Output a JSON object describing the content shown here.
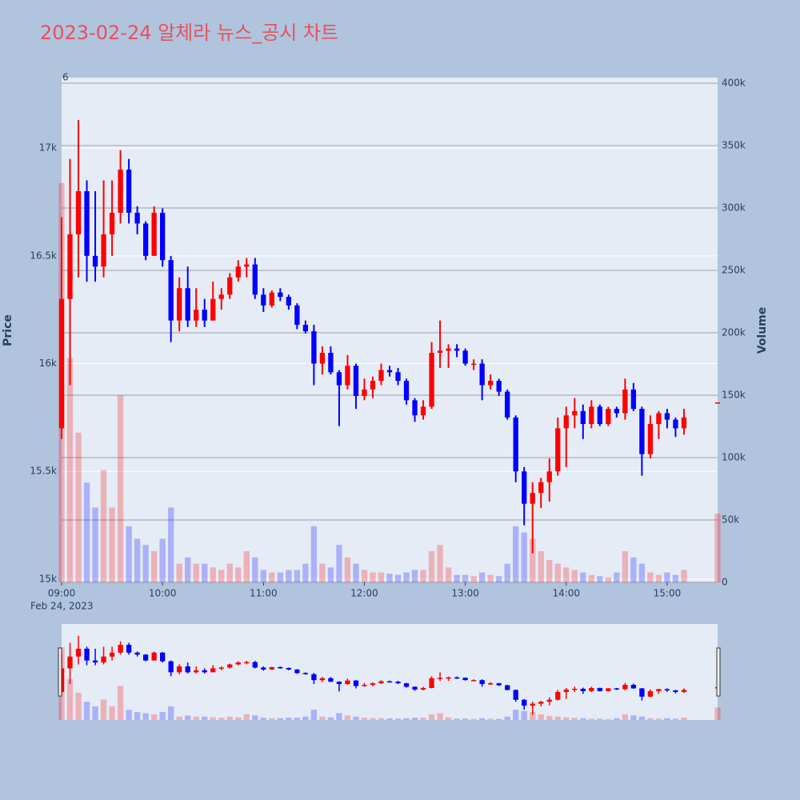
{
  "chart_data": {
    "type": "candlestick",
    "title": "2023-02-24 알체라 뉴스_공시 차트",
    "annotation": "6",
    "y_title": "Price",
    "y2_title": "Volume",
    "x_sublabel": "Feb 24, 2023",
    "up_color": "#ff0000",
    "down_color": "#0000ff",
    "x": [
      "2023-02-24 09:00",
      "2023-02-24 09:05",
      "2023-02-24 09:10",
      "2023-02-24 09:15",
      "2023-02-24 09:20",
      "2023-02-24 09:25",
      "2023-02-24 09:30",
      "2023-02-24 09:35",
      "2023-02-24 09:40",
      "2023-02-24 09:45",
      "2023-02-24 09:50",
      "2023-02-24 09:55",
      "2023-02-24 10:00",
      "2023-02-24 10:05",
      "2023-02-24 10:10",
      "2023-02-24 10:15",
      "2023-02-24 10:20",
      "2023-02-24 10:25",
      "2023-02-24 10:30",
      "2023-02-24 10:35",
      "2023-02-24 10:40",
      "2023-02-24 10:45",
      "2023-02-24 10:50",
      "2023-02-24 10:55",
      "2023-02-24 11:00",
      "2023-02-24 11:05",
      "2023-02-24 11:10",
      "2023-02-24 11:15",
      "2023-02-24 11:20",
      "2023-02-24 11:25",
      "2023-02-24 11:30",
      "2023-02-24 11:35",
      "2023-02-24 11:40",
      "2023-02-24 11:45",
      "2023-02-24 11:50",
      "2023-02-24 11:55",
      "2023-02-24 12:00",
      "2023-02-24 12:05",
      "2023-02-24 12:10",
      "2023-02-24 12:15",
      "2023-02-24 12:20",
      "2023-02-24 12:25",
      "2023-02-24 12:30",
      "2023-02-24 12:35",
      "2023-02-24 12:40",
      "2023-02-24 12:45",
      "2023-02-24 12:50",
      "2023-02-24 12:55",
      "2023-02-24 13:00",
      "2023-02-24 13:05",
      "2023-02-24 13:10",
      "2023-02-24 13:15",
      "2023-02-24 13:20",
      "2023-02-24 13:25",
      "2023-02-24 13:30",
      "2023-02-24 13:35",
      "2023-02-24 13:40",
      "2023-02-24 13:45",
      "2023-02-24 13:50",
      "2023-02-24 13:55",
      "2023-02-24 14:00",
      "2023-02-24 14:05",
      "2023-02-24 14:10",
      "2023-02-24 14:15",
      "2023-02-24 14:20",
      "2023-02-24 14:25",
      "2023-02-24 14:30",
      "2023-02-24 14:35",
      "2023-02-24 14:40",
      "2023-02-24 14:45",
      "2023-02-24 14:50",
      "2023-02-24 14:55",
      "2023-02-24 15:00",
      "2023-02-24 15:05",
      "2023-02-24 15:10",
      "2023-02-24 15:30"
    ],
    "open": [
      15700,
      16300,
      16600,
      16800,
      16500,
      16450,
      16600,
      16700,
      16900,
      16700,
      16650,
      16500,
      16700,
      16480,
      16200,
      16350,
      16200,
      16250,
      16200,
      16300,
      16320,
      16400,
      16450,
      16460,
      16320,
      16270,
      16330,
      16310,
      16270,
      16180,
      16150,
      16000,
      16050,
      15960,
      15900,
      15990,
      15850,
      15880,
      15920,
      15970,
      15960,
      15920,
      15830,
      15760,
      15800,
      16050,
      16060,
      16070,
      16060,
      16000,
      16000,
      15900,
      15920,
      15870,
      15750,
      15500,
      15350,
      15400,
      15450,
      15500,
      15700,
      15760,
      15780,
      15720,
      15800,
      15720,
      15790,
      15770,
      15880,
      15790,
      15580,
      15720,
      15770,
      15740,
      15700,
      15820
    ],
    "high": [
      16680,
      16950,
      17130,
      16850,
      16800,
      16850,
      16850,
      16990,
      16950,
      16730,
      16660,
      16730,
      16720,
      16500,
      16400,
      16450,
      16350,
      16300,
      16380,
      16350,
      16420,
      16480,
      16490,
      16490,
      16350,
      16340,
      16350,
      16320,
      16280,
      16200,
      16180,
      16080,
      16080,
      15970,
      16040,
      16000,
      15930,
      15940,
      16000,
      15990,
      15980,
      15930,
      15840,
      15830,
      16100,
      16200,
      16090,
      16090,
      16070,
      16020,
      16020,
      15950,
      15930,
      15880,
      15760,
      15520,
      15450,
      15470,
      15560,
      15750,
      15800,
      15840,
      15810,
      15830,
      15810,
      15800,
      15800,
      15930,
      15910,
      15800,
      15760,
      15780,
      15790,
      15750,
      15790,
      15820
    ],
    "low": [
      15650,
      15900,
      16400,
      16380,
      16380,
      16400,
      16500,
      16650,
      16650,
      16600,
      16480,
      16500,
      16450,
      16100,
      16150,
      16170,
      16170,
      16170,
      16200,
      16250,
      16300,
      16380,
      16400,
      16300,
      16240,
      16260,
      16290,
      16250,
      16160,
      16140,
      15900,
      15950,
      15950,
      15710,
      15880,
      15790,
      15830,
      15840,
      15900,
      15940,
      15900,
      15810,
      15730,
      15740,
      15790,
      15980,
      15980,
      16030,
      15990,
      15970,
      15830,
      15880,
      15850,
      15740,
      15450,
      15250,
      15120,
      15330,
      15360,
      15480,
      15520,
      15700,
      15650,
      15700,
      15710,
      15710,
      15750,
      15740,
      15780,
      15480,
      15560,
      15650,
      15700,
      15660,
      15670,
      15820
    ],
    "close": [
      16300,
      16600,
      16800,
      16500,
      16450,
      16600,
      16700,
      16900,
      16700,
      16650,
      16500,
      16700,
      16480,
      16200,
      16350,
      16200,
      16250,
      16200,
      16300,
      16320,
      16400,
      16450,
      16460,
      16320,
      16270,
      16330,
      16310,
      16270,
      16180,
      16150,
      16000,
      16050,
      15960,
      15900,
      15990,
      15850,
      15880,
      15920,
      15970,
      15960,
      15920,
      15830,
      15760,
      15800,
      16050,
      16060,
      16070,
      16060,
      16000,
      16000,
      15900,
      15920,
      15870,
      15750,
      15500,
      15350,
      15400,
      15450,
      15500,
      15700,
      15760,
      15780,
      15720,
      15800,
      15720,
      15790,
      15770,
      15880,
      15790,
      15580,
      15720,
      15770,
      15740,
      15700,
      15750,
      15820
    ],
    "volume": [
      320000,
      180000,
      120000,
      80000,
      60000,
      90000,
      60000,
      150000,
      45000,
      35000,
      30000,
      25000,
      35000,
      60000,
      15000,
      20000,
      15000,
      15000,
      12000,
      10000,
      15000,
      12000,
      25000,
      20000,
      10000,
      8000,
      8000,
      10000,
      10000,
      15000,
      45000,
      15000,
      12000,
      30000,
      20000,
      15000,
      10000,
      8000,
      8000,
      7000,
      6000,
      8000,
      10000,
      10000,
      25000,
      30000,
      12000,
      6000,
      6000,
      5000,
      8000,
      6000,
      5000,
      15000,
      45000,
      40000,
      35000,
      25000,
      18000,
      15000,
      12000,
      10000,
      8000,
      6000,
      5000,
      4000,
      8000,
      25000,
      20000,
      15000,
      8000,
      6000,
      8000,
      6000,
      10000,
      55000
    ],
    "xlim": [
      "2023-02-24 09:00",
      "2023-02-24 15:30"
    ],
    "xticks": [
      {
        "value": "2023-02-24 09:00",
        "label": "09:00"
      },
      {
        "value": "2023-02-24 10:00",
        "label": "10:00"
      },
      {
        "value": "2023-02-24 11:00",
        "label": "11:00"
      },
      {
        "value": "2023-02-24 12:00",
        "label": "12:00"
      },
      {
        "value": "2023-02-24 13:00",
        "label": "13:00"
      },
      {
        "value": "2023-02-24 14:00",
        "label": "14:00"
      },
      {
        "value": "2023-02-24 15:00",
        "label": "15:00"
      }
    ],
    "ylim": [
      14985,
      17327
    ],
    "yticks": [
      {
        "value": 15000,
        "label": "15k"
      },
      {
        "value": 15500,
        "label": "15.5k"
      },
      {
        "value": 16000,
        "label": "16k"
      },
      {
        "value": 16500,
        "label": "16.5k"
      },
      {
        "value": 17000,
        "label": "17k"
      }
    ],
    "y2lim": [
      0,
      404500
    ],
    "y2ticks": [
      0,
      {
        "value": 50000,
        "label": "50k"
      },
      {
        "value": 100000,
        "label": "100k"
      },
      {
        "value": 150000,
        "label": "150k"
      },
      {
        "value": 200000,
        "label": "200k"
      },
      {
        "value": 250000,
        "label": "250k"
      },
      {
        "value": 300000,
        "label": "300k"
      },
      {
        "value": 350000,
        "label": "350k"
      },
      {
        "value": 400000,
        "label": "400k"
      }
    ]
  }
}
